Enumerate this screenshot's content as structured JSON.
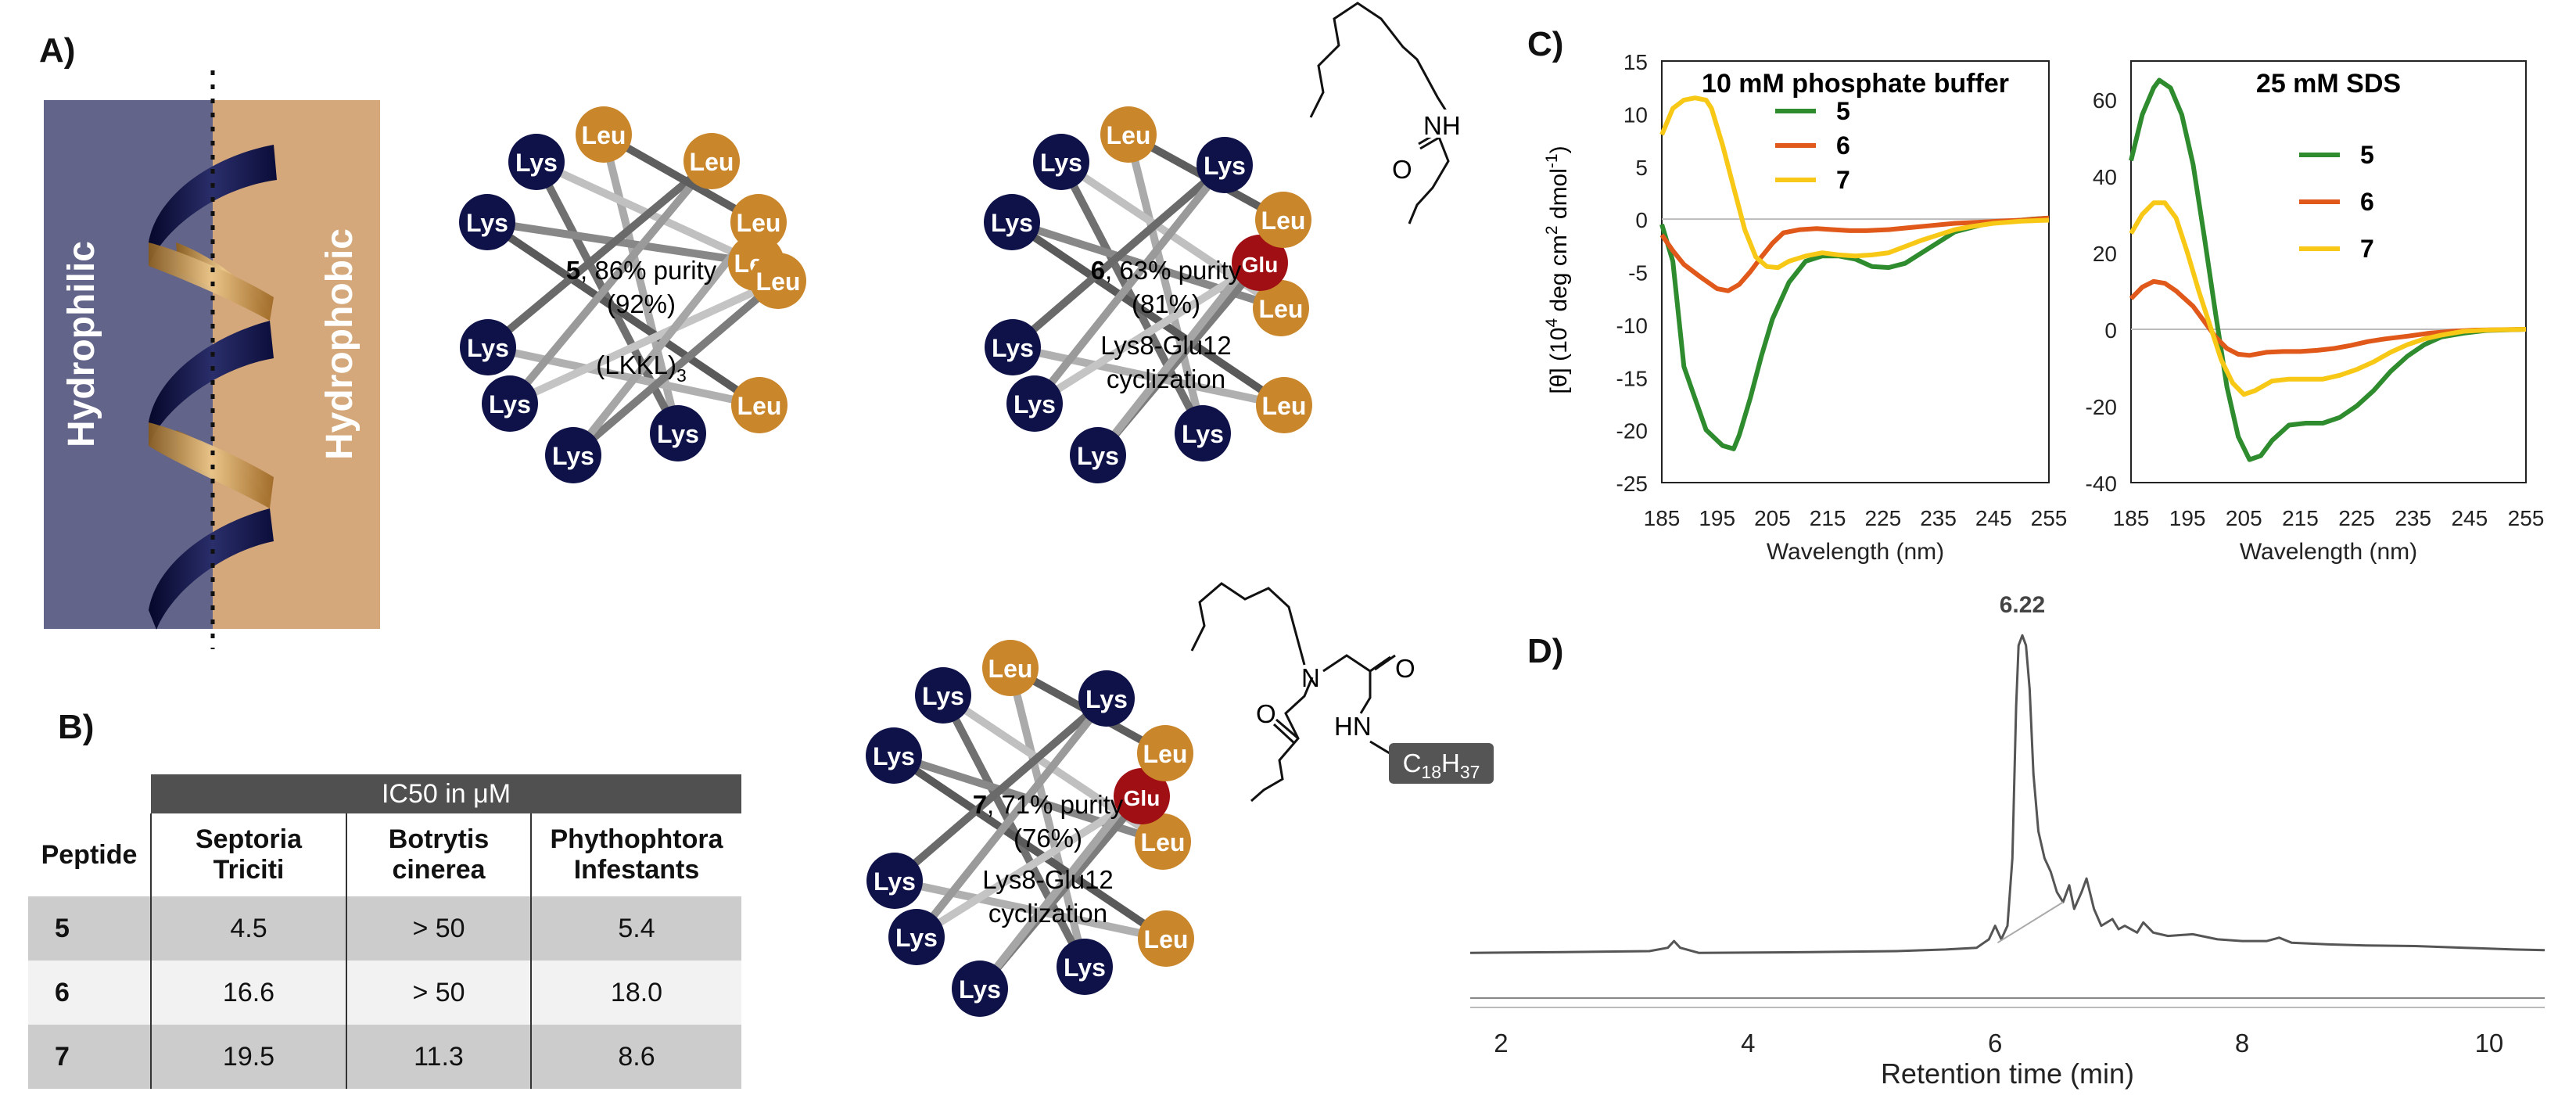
{
  "panel_labels": {
    "a": "A)",
    "b": "B)",
    "c": "C)",
    "d": "D)"
  },
  "panel_a": {
    "helix_left_label": "Hydrophilic",
    "helix_right_label": "Hydrophobic",
    "colors": {
      "hydrophilic": "#636489",
      "hydrophobic": "#d4a87a",
      "lys": "#0f1248",
      "leu": "#c9862a",
      "mod": "#a00f14"
    },
    "wheel5": {
      "residues": [
        "Leu",
        "Lys",
        "Lys",
        "Lys",
        "Lys",
        "Lys",
        "Lys",
        "Leu",
        "Leu",
        "Leu",
        "Leu",
        "Leu"
      ],
      "num": "5",
      "caption1": ", 86% purity",
      "caption2": "(92%)",
      "caption3": "(LKKL)",
      "caption3_sub": "3"
    },
    "wheel6": {
      "residues": [
        "Leu",
        "Lys",
        "Lys",
        "Lys",
        "Lys",
        "Lys",
        "Lys",
        "Leu",
        "Leu",
        "Glu",
        "Leu",
        "Lys"
      ],
      "num": "6",
      "caption1": ", 63% purity",
      "caption2": "(81%)",
      "caption3": "Lys8-Glu12",
      "caption4": "cyclization",
      "linker": {
        "nh": "NH",
        "o": "O"
      }
    },
    "wheel7": {
      "residues": [
        "Leu",
        "Lys",
        "Lys",
        "Lys",
        "Lys",
        "Lys",
        "Lys",
        "Leu",
        "Leu",
        "Glu",
        "Leu",
        "Lys"
      ],
      "num": "7",
      "caption1": ", 71% purity",
      "caption2": "(76%)",
      "caption3": "Lys8-Glu12",
      "caption4": "cyclization",
      "linker": {
        "n": "N",
        "o1": "O",
        "o2": "O",
        "hn": "HN",
        "tag": "C",
        "tag_sub1": "18",
        "tag_mid": "H",
        "tag_sub2": "37"
      }
    }
  },
  "panel_b": {
    "super_header": "IC50 in μM",
    "columns": [
      "Peptide",
      "Septoria Triciti",
      "Botrytis cinerea",
      "Phythophtora Infestants"
    ],
    "col_lines": [
      [
        "Peptide"
      ],
      [
        "Septoria",
        "Triciti"
      ],
      [
        "Botrytis",
        "cinerea"
      ],
      [
        "Phythophtora",
        "Infestants"
      ]
    ],
    "rows": [
      [
        "5",
        "4.5",
        "> 50",
        "5.4"
      ],
      [
        "6",
        "16.6",
        "> 50",
        "18.0"
      ],
      [
        "7",
        "19.5",
        "11.3",
        "8.6"
      ]
    ]
  },
  "panel_c": {
    "y_label_part1": "[θ] (10",
    "y_label_sup": "4",
    "y_label_part2": " deg cm",
    "y_label_sup2": "2",
    "y_label_part3": " dmol",
    "y_label_sup3": "-1",
    "y_label_part4": ")"
  },
  "panel_d": {},
  "chart_data": [
    {
      "type": "line",
      "title": "10 mM phosphate buffer",
      "xlabel": "Wavelength (nm)",
      "ylabel": "[θ] (10^4 deg cm^2 dmol^-1)",
      "xlim": [
        185,
        255
      ],
      "ylim": [
        -25,
        15
      ],
      "xticks": [
        185,
        195,
        205,
        215,
        225,
        235,
        245,
        255
      ],
      "yticks": [
        -25,
        -20,
        -15,
        -10,
        -5,
        0,
        5,
        10,
        15
      ],
      "series": [
        {
          "name": "5",
          "color": "#2e8b2e",
          "points": [
            [
              185,
              -0.5
            ],
            [
              187,
              -4
            ],
            [
              188,
              -9
            ],
            [
              189,
              -14
            ],
            [
              191,
              -17
            ],
            [
              193,
              -20
            ],
            [
              196,
              -21.5
            ],
            [
              198,
              -21.8
            ],
            [
              199,
              -20.5
            ],
            [
              201,
              -17
            ],
            [
              203,
              -13
            ],
            [
              205,
              -9.5
            ],
            [
              208,
              -6
            ],
            [
              211,
              -4
            ],
            [
              214,
              -3.5
            ],
            [
              217,
              -3.5
            ],
            [
              220,
              -3.8
            ],
            [
              223,
              -4.5
            ],
            [
              226,
              -4.6
            ],
            [
              229,
              -4.2
            ],
            [
              232,
              -3.2
            ],
            [
              235,
              -2.2
            ],
            [
              238,
              -1.2
            ],
            [
              241,
              -0.8
            ],
            [
              244,
              -0.4
            ],
            [
              248,
              -0.2
            ],
            [
              252,
              0
            ],
            [
              255,
              0.1
            ]
          ]
        },
        {
          "name": "6",
          "color": "#e0581a",
          "points": [
            [
              185,
              -1.5
            ],
            [
              187,
              -3
            ],
            [
              189,
              -4.3
            ],
            [
              192,
              -5.5
            ],
            [
              195,
              -6.6
            ],
            [
              197,
              -6.8
            ],
            [
              199,
              -6.2
            ],
            [
              201,
              -5
            ],
            [
              203,
              -3.6
            ],
            [
              205,
              -2.3
            ],
            [
              207,
              -1.3
            ],
            [
              210,
              -1
            ],
            [
              213,
              -0.9
            ],
            [
              216,
              -1
            ],
            [
              219,
              -1.1
            ],
            [
              222,
              -1.1
            ],
            [
              226,
              -1
            ],
            [
              230,
              -0.8
            ],
            [
              234,
              -0.6
            ],
            [
              238,
              -0.4
            ],
            [
              242,
              -0.3
            ],
            [
              246,
              -0.2
            ],
            [
              250,
              -0.1
            ],
            [
              255,
              0.1
            ]
          ]
        },
        {
          "name": "7",
          "color": "#f7c815",
          "points": [
            [
              185,
              8
            ],
            [
              187,
              10.5
            ],
            [
              189,
              11.3
            ],
            [
              191,
              11.5
            ],
            [
              193,
              11.3
            ],
            [
              194,
              10.5
            ],
            [
              196,
              7
            ],
            [
              198,
              3
            ],
            [
              200,
              -1
            ],
            [
              202,
              -3.6
            ],
            [
              204,
              -4.5
            ],
            [
              206,
              -4.6
            ],
            [
              208,
              -4
            ],
            [
              211,
              -3.5
            ],
            [
              214,
              -3.2
            ],
            [
              217,
              -3.4
            ],
            [
              220,
              -3.5
            ],
            [
              223,
              -3.4
            ],
            [
              226,
              -3.2
            ],
            [
              229,
              -2.6
            ],
            [
              232,
              -2
            ],
            [
              235,
              -1.5
            ],
            [
              238,
              -1
            ],
            [
              241,
              -0.7
            ],
            [
              245,
              -0.4
            ],
            [
              250,
              -0.2
            ],
            [
              255,
              -0.1
            ]
          ]
        }
      ]
    },
    {
      "type": "line",
      "title": "25 mM SDS",
      "xlabel": "Wavelength (nm)",
      "ylabel": "",
      "xlim": [
        185,
        255
      ],
      "ylim": [
        -40,
        70
      ],
      "xticks": [
        185,
        195,
        205,
        215,
        225,
        235,
        245,
        255
      ],
      "yticks": [
        -40,
        -20,
        0,
        20,
        40,
        60
      ],
      "series": [
        {
          "name": "5",
          "color": "#2e8b2e",
          "points": [
            [
              185,
              44
            ],
            [
              187,
              56
            ],
            [
              189,
              63
            ],
            [
              190,
              65
            ],
            [
              192,
              63
            ],
            [
              194,
              56
            ],
            [
              196,
              43
            ],
            [
              198,
              24
            ],
            [
              200,
              4
            ],
            [
              202,
              -15
            ],
            [
              204,
              -28
            ],
            [
              206,
              -34
            ],
            [
              208,
              -33
            ],
            [
              210,
              -29
            ],
            [
              213,
              -25
            ],
            [
              216,
              -24.5
            ],
            [
              219,
              -24.5
            ],
            [
              222,
              -23
            ],
            [
              225,
              -20
            ],
            [
              228,
              -16
            ],
            [
              231,
              -11
            ],
            [
              234,
              -7
            ],
            [
              237,
              -4
            ],
            [
              240,
              -2
            ],
            [
              244,
              -1
            ],
            [
              248,
              -0.3
            ],
            [
              255,
              0
            ]
          ]
        },
        {
          "name": "6",
          "color": "#e0581a",
          "points": [
            [
              185,
              8
            ],
            [
              187,
              11
            ],
            [
              189,
              12.5
            ],
            [
              191,
              12
            ],
            [
              193,
              10
            ],
            [
              196,
              6
            ],
            [
              198,
              2
            ],
            [
              200,
              -2
            ],
            [
              202,
              -5
            ],
            [
              204,
              -6.5
            ],
            [
              206,
              -6.8
            ],
            [
              209,
              -6
            ],
            [
              212,
              -5.8
            ],
            [
              215,
              -5.8
            ],
            [
              218,
              -5.5
            ],
            [
              221,
              -5
            ],
            [
              224,
              -4.2
            ],
            [
              227,
              -3.2
            ],
            [
              230,
              -2.5
            ],
            [
              234,
              -1.8
            ],
            [
              238,
              -1
            ],
            [
              242,
              -0.5
            ],
            [
              246,
              -0.2
            ],
            [
              255,
              0
            ]
          ]
        },
        {
          "name": "7",
          "color": "#f7c815",
          "points": [
            [
              185,
              25
            ],
            [
              187,
              30
            ],
            [
              189,
              33
            ],
            [
              191,
              33
            ],
            [
              193,
              29
            ],
            [
              195,
              20
            ],
            [
              197,
              10
            ],
            [
              199,
              1
            ],
            [
              201,
              -8
            ],
            [
              203,
              -14
            ],
            [
              205,
              -17
            ],
            [
              207,
              -16
            ],
            [
              210,
              -13.5
            ],
            [
              213,
              -13
            ],
            [
              216,
              -13
            ],
            [
              219,
              -13
            ],
            [
              222,
              -12
            ],
            [
              225,
              -10.5
            ],
            [
              228,
              -8.5
            ],
            [
              231,
              -6
            ],
            [
              234,
              -4
            ],
            [
              237,
              -2.5
            ],
            [
              240,
              -1.5
            ],
            [
              244,
              -0.5
            ],
            [
              248,
              -0.2
            ],
            [
              255,
              0
            ]
          ]
        }
      ]
    },
    {
      "type": "line",
      "title": "",
      "xlabel": "Retention time (min)",
      "ylabel": "",
      "xlim": [
        1.75,
        10.45
      ],
      "ylim": [
        -0.1,
        1.0
      ],
      "xticks": [
        2,
        4,
        6,
        8,
        10
      ],
      "annotations": [
        {
          "x": 6.22,
          "label": "6.22"
        }
      ],
      "series": [
        {
          "name": "chromatogram",
          "color": "#555555",
          "points": [
            [
              1.75,
              0.02
            ],
            [
              2.5,
              0.022
            ],
            [
              3.2,
              0.025
            ],
            [
              3.35,
              0.035
            ],
            [
              3.4,
              0.055
            ],
            [
              3.45,
              0.035
            ],
            [
              3.6,
              0.02
            ],
            [
              4.5,
              0.022
            ],
            [
              5.2,
              0.025
            ],
            [
              5.6,
              0.03
            ],
            [
              5.85,
              0.035
            ],
            [
              5.95,
              0.06
            ],
            [
              6.0,
              0.1
            ],
            [
              6.05,
              0.06
            ],
            [
              6.1,
              0.1
            ],
            [
              6.14,
              0.3
            ],
            [
              6.17,
              0.75
            ],
            [
              6.19,
              0.93
            ],
            [
              6.22,
              0.96
            ],
            [
              6.25,
              0.93
            ],
            [
              6.28,
              0.8
            ],
            [
              6.31,
              0.55
            ],
            [
              6.35,
              0.38
            ],
            [
              6.4,
              0.3
            ],
            [
              6.45,
              0.26
            ],
            [
              6.5,
              0.2
            ],
            [
              6.55,
              0.17
            ],
            [
              6.6,
              0.22
            ],
            [
              6.64,
              0.15
            ],
            [
              6.7,
              0.2
            ],
            [
              6.74,
              0.24
            ],
            [
              6.8,
              0.15
            ],
            [
              6.86,
              0.1
            ],
            [
              6.95,
              0.12
            ],
            [
              7.0,
              0.09
            ],
            [
              7.05,
              0.1
            ],
            [
              7.15,
              0.08
            ],
            [
              7.2,
              0.11
            ],
            [
              7.28,
              0.08
            ],
            [
              7.4,
              0.07
            ],
            [
              7.6,
              0.075
            ],
            [
              7.8,
              0.06
            ],
            [
              8.0,
              0.055
            ],
            [
              8.2,
              0.055
            ],
            [
              8.3,
              0.065
            ],
            [
              8.4,
              0.05
            ],
            [
              8.7,
              0.045
            ],
            [
              9.0,
              0.042
            ],
            [
              9.4,
              0.04
            ],
            [
              9.8,
              0.035
            ],
            [
              10.2,
              0.03
            ],
            [
              10.45,
              0.028
            ]
          ]
        },
        {
          "name": "baseline-fit",
          "color": "#aaaaaa",
          "points": [
            [
              6.02,
              0.05
            ],
            [
              6.55,
              0.17
            ]
          ]
        }
      ]
    }
  ]
}
